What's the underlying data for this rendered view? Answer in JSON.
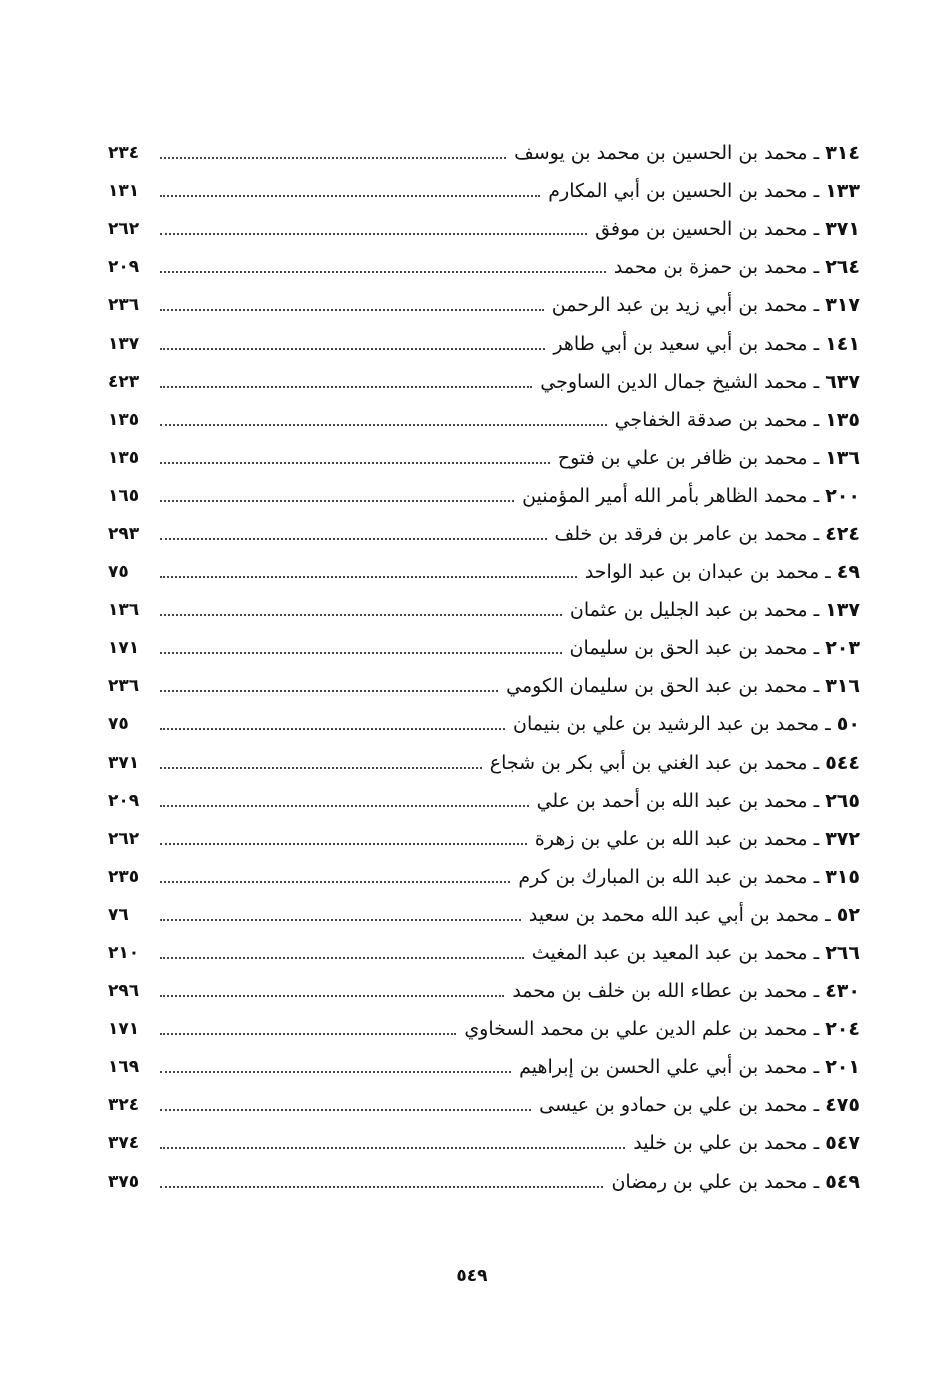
{
  "entries": [
    {
      "num": "٣١٤",
      "name": "محمد بن الحسين بن محمد بن يوسف",
      "page": "٢٣٤"
    },
    {
      "num": "١٣٣",
      "name": "محمد بن الحسين بن أبي المكارم",
      "page": "١٣١"
    },
    {
      "num": "٣٧١",
      "name": "محمد بن الحسين بن موفق",
      "page": "٢٦٢"
    },
    {
      "num": "٢٦٤",
      "name": "محمد بن حمزة بن محمد",
      "page": "٢٠٩"
    },
    {
      "num": "٣١٧",
      "name": "محمد بن أبي زيد بن عبد الرحمن",
      "page": "٢٣٦"
    },
    {
      "num": "١٤١",
      "name": "محمد بن أبي سعيد بن أبي طاهر",
      "page": "١٣٧"
    },
    {
      "num": "٦٣٧",
      "name": "محمد الشيخ جمال الدين الساوجي",
      "page": "٤٢٣"
    },
    {
      "num": "١٣٥",
      "name": "محمد بن صدقة الخفاجي",
      "page": "١٣٥"
    },
    {
      "num": "١٣٦",
      "name": "محمد بن ظافر بن علي بن فتوح",
      "page": "١٣٥"
    },
    {
      "num": "٢٠٠",
      "name": "محمد الظاهر بأمر الله أمير المؤمنين",
      "page": "١٦٥"
    },
    {
      "num": "٤٢٤",
      "name": "محمد بن عامر بن فرقد بن خلف",
      "page": "٢٩٣"
    },
    {
      "num": "٤٩",
      "name": "محمد بن عبدان بن عبد الواحد",
      "page": "٧٥"
    },
    {
      "num": "١٣٧",
      "name": "محمد بن عبد الجليل بن عثمان",
      "page": "١٣٦"
    },
    {
      "num": "٢٠٣",
      "name": "محمد بن عبد الحق بن سليمان",
      "page": "١٧١"
    },
    {
      "num": "٣١٦",
      "name": "محمد بن عبد الحق بن سليمان الكومي",
      "page": "٢٣٦"
    },
    {
      "num": "٥٠",
      "name": "محمد بن عبد الرشيد بن علي بن بنيمان",
      "page": "٧٥"
    },
    {
      "num": "٥٤٤",
      "name": "محمد بن عبد الغني بن أبي بكر بن شجاع",
      "page": "٣٧١"
    },
    {
      "num": "٢٦٥",
      "name": "محمد بن عبد الله بن أحمد بن علي",
      "page": "٢٠٩"
    },
    {
      "num": "٣٧٢",
      "name": "محمد بن عبد الله بن علي بن زهرة",
      "page": "٢٦٢"
    },
    {
      "num": "٣١٥",
      "name": "محمد بن عبد الله بن المبارك بن كرم",
      "page": "٢٣٥"
    },
    {
      "num": "٥٢",
      "name": "محمد بن أبي عبد الله محمد بن سعيد",
      "page": "٧٦"
    },
    {
      "num": "٢٦٦",
      "name": "محمد بن عبد المعيد بن عبد المغيث",
      "page": "٢١٠"
    },
    {
      "num": "٤٣٠",
      "name": "محمد بن عطاء الله بن خلف بن محمد",
      "page": "٢٩٦"
    },
    {
      "num": "٢٠٤",
      "name": "محمد بن علم الدين علي بن محمد السخاوي",
      "page": "١٧١"
    },
    {
      "num": "٢٠١",
      "name": "محمد بن أبي علي الحسن بن إبراهيم",
      "page": "١٦٩"
    },
    {
      "num": "٤٧٥",
      "name": "محمد بن علي بن حمادو بن عيسى",
      "page": "٣٢٤"
    },
    {
      "num": "٥٤٧",
      "name": "محمد بن علي بن خليد",
      "page": "٣٧٤"
    },
    {
      "num": "٥٤٩",
      "name": "محمد بن علي بن رمضان",
      "page": "٣٧٥"
    }
  ],
  "separator": " ـ ",
  "footer": {
    "page_number": "٥٤٩"
  }
}
